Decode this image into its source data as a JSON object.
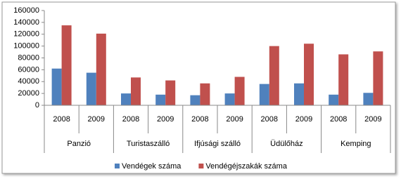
{
  "chart_data": {
    "type": "bar",
    "categories": [
      "2008",
      "2009",
      "2008",
      "2009",
      "2008",
      "2009",
      "2008",
      "2009",
      "2008",
      "2009"
    ],
    "groups": [
      "Panzió",
      "Turistaszálló",
      "Ifjúsági szálló",
      "Üdülőház",
      "Kemping"
    ],
    "series": [
      {
        "name": "Vendégek száma",
        "color": "#4f81bd",
        "values": [
          62000,
          55000,
          20000,
          18000,
          17000,
          20000,
          36000,
          37000,
          18000,
          21000
        ]
      },
      {
        "name": "Vendégéjszakák száma",
        "color": "#c0504d",
        "values": [
          135000,
          121000,
          47000,
          42000,
          37000,
          48000,
          100000,
          104000,
          86000,
          91000
        ]
      }
    ],
    "ylim": [
      0,
      160000
    ],
    "yticks": [
      0,
      20000,
      40000,
      60000,
      80000,
      100000,
      120000,
      140000,
      160000
    ],
    "grid": false,
    "legend": "bottom"
  }
}
